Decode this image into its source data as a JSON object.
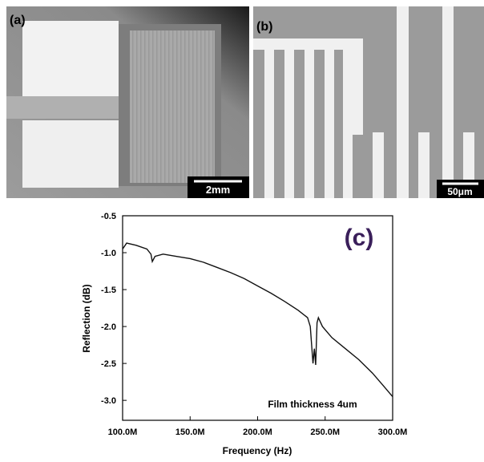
{
  "panels": [
    {
      "label": "(a)",
      "scale_bar": "2mm"
    },
    {
      "label": "(b)",
      "scale_bar": "50μm"
    }
  ],
  "chart_data": {
    "type": "line",
    "annotation": "(c)",
    "note": "Film thickness 4um",
    "x_label": "Frequency (Hz)",
    "y_label": "Reflection (dB)",
    "color": "#111111",
    "x": [
      100000000,
      103000000,
      110000000,
      118000000,
      121000000,
      122000000,
      124000000,
      130000000,
      140000000,
      150000000,
      160000000,
      170000000,
      180000000,
      190000000,
      200000000,
      210000000,
      220000000,
      230000000,
      237000000,
      239000000,
      241000000,
      242000000,
      243000000,
      244000000,
      245000000,
      248000000,
      255000000,
      265000000,
      275000000,
      285000000,
      293000000,
      300000000
    ],
    "values": [
      -0.95,
      -0.87,
      -0.9,
      -0.95,
      -1.02,
      -1.12,
      -1.05,
      -1.02,
      -1.05,
      -1.08,
      -1.13,
      -1.2,
      -1.27,
      -1.35,
      -1.45,
      -1.55,
      -1.66,
      -1.78,
      -1.88,
      -2.0,
      -2.5,
      -2.3,
      -2.52,
      -1.95,
      -1.88,
      -2.0,
      -2.15,
      -2.3,
      -2.45,
      -2.63,
      -2.8,
      -2.95
    ],
    "xlim": [
      100000000,
      300000000
    ],
    "xticks": [
      {
        "value": 100000000,
        "label": "100.0M"
      },
      {
        "value": 150000000,
        "label": "150.0M"
      },
      {
        "value": 200000000,
        "label": "200.0M"
      },
      {
        "value": 250000000,
        "label": "250.0M"
      },
      {
        "value": 300000000,
        "label": "300.0M"
      }
    ],
    "ylim": [
      -3.27,
      -0.5
    ],
    "yticks": [
      -0.5,
      {
        "value": -1,
        "label": "-1.0"
      },
      -1.5,
      {
        "value": -2,
        "label": "-2.0"
      },
      -2.5,
      {
        "value": -3,
        "label": "-3.0"
      }
    ]
  }
}
